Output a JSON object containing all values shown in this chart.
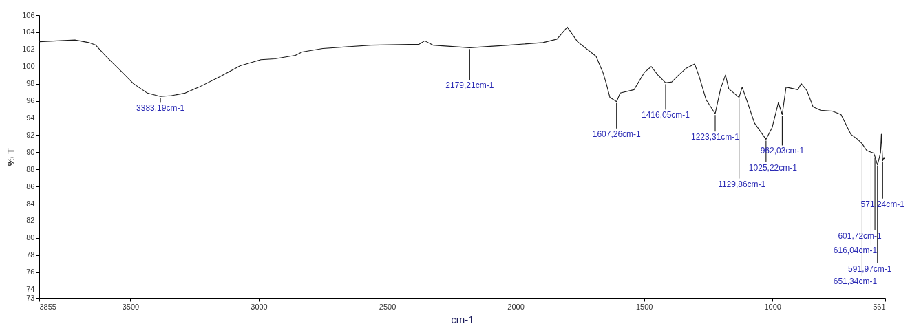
{
  "chart_data": {
    "type": "line",
    "xlabel": "cm-1",
    "ylabel": "% T",
    "x": [
      3855,
      3716,
      3662,
      3635,
      3595,
      3541,
      3488,
      3434,
      3383,
      3340,
      3287,
      3233,
      3153,
      3072,
      2992,
      2938,
      2858,
      2831,
      2751,
      2563,
      2376,
      2354,
      2322,
      2179,
      2027,
      1893,
      1839,
      1799,
      1759,
      1687,
      1660,
      1647,
      1633,
      1607,
      1593,
      1539,
      1499,
      1472,
      1446,
      1416,
      1392,
      1365,
      1336,
      1303,
      1285,
      1258,
      1223,
      1202,
      1183,
      1170,
      1130,
      1118,
      1097,
      1070,
      1025,
      1001,
      977,
      962,
      947,
      901,
      888,
      866,
      842,
      813,
      767,
      733,
      695,
      668,
      651,
      633,
      616,
      606,
      601,
      591,
      579,
      576,
      571,
      566,
      561
    ],
    "series": [
      {
        "color": "#1a1a1a",
        "values": [
          102.9,
          103.1,
          102.8,
          102.5,
          101.2,
          99.6,
          98.0,
          96.9,
          96.5,
          96.6,
          96.9,
          97.6,
          98.8,
          100.1,
          100.8,
          100.9,
          101.3,
          101.7,
          102.1,
          102.5,
          102.6,
          103.0,
          102.5,
          102.2,
          102.5,
          102.8,
          103.2,
          104.6,
          102.9,
          101.2,
          99.3,
          98.0,
          96.4,
          95.9,
          96.9,
          97.3,
          99.3,
          100.0,
          99.0,
          98.1,
          98.2,
          99.0,
          99.8,
          100.3,
          98.8,
          96.1,
          94.5,
          97.4,
          99.0,
          97.4,
          96.4,
          97.6,
          95.8,
          93.4,
          91.5,
          92.9,
          95.8,
          94.4,
          97.6,
          97.3,
          98.0,
          97.2,
          95.3,
          94.9,
          94.8,
          94.4,
          92.1,
          91.5,
          91.0,
          90.2,
          90.0,
          89.9,
          89.5,
          88.5,
          90.0,
          92.1,
          89.0,
          89.4,
          89.1
        ]
      }
    ],
    "xlim": [
      3855,
      561
    ],
    "xticks": [
      3855,
      3500,
      3000,
      2500,
      2000,
      1500,
      1000,
      561
    ],
    "ylim": [
      73,
      106
    ],
    "yticks": [
      73,
      74,
      76,
      78,
      80,
      82,
      84,
      86,
      88,
      90,
      92,
      94,
      96,
      98,
      100,
      102,
      104,
      106
    ],
    "grid": false,
    "marker": "none",
    "line_style": "solid",
    "annotations": [
      {
        "text": "3383,19cm-1",
        "x": 3383,
        "y": 96.5
      },
      {
        "text": "2179,21cm-1",
        "x": 2179,
        "y": 102.2
      },
      {
        "text": "1607,26cm-1",
        "x": 1607,
        "y": 95.9
      },
      {
        "text": "1416,05cm-1",
        "x": 1416,
        "y": 98.1
      },
      {
        "text": "1223,31cm-1",
        "x": 1223,
        "y": 94.5
      },
      {
        "text": "1129,86cm-1",
        "x": 1130,
        "y": 96.4
      },
      {
        "text": "1025,22cm-1",
        "x": 1025,
        "y": 91.5
      },
      {
        "text": "962,03cm-1",
        "x": 962,
        "y": 94.4
      },
      {
        "text": "571,24cm-1",
        "x": 571,
        "y": 89.0
      },
      {
        "text": "601,72cm-1",
        "x": 601,
        "y": 89.5
      },
      {
        "text": "616,04cm-1",
        "x": 616,
        "y": 90.0
      },
      {
        "text": "591,97cm-1",
        "x": 591,
        "y": 88.5
      },
      {
        "text": "651,34cm-1",
        "x": 651,
        "y": 91.0
      }
    ]
  }
}
